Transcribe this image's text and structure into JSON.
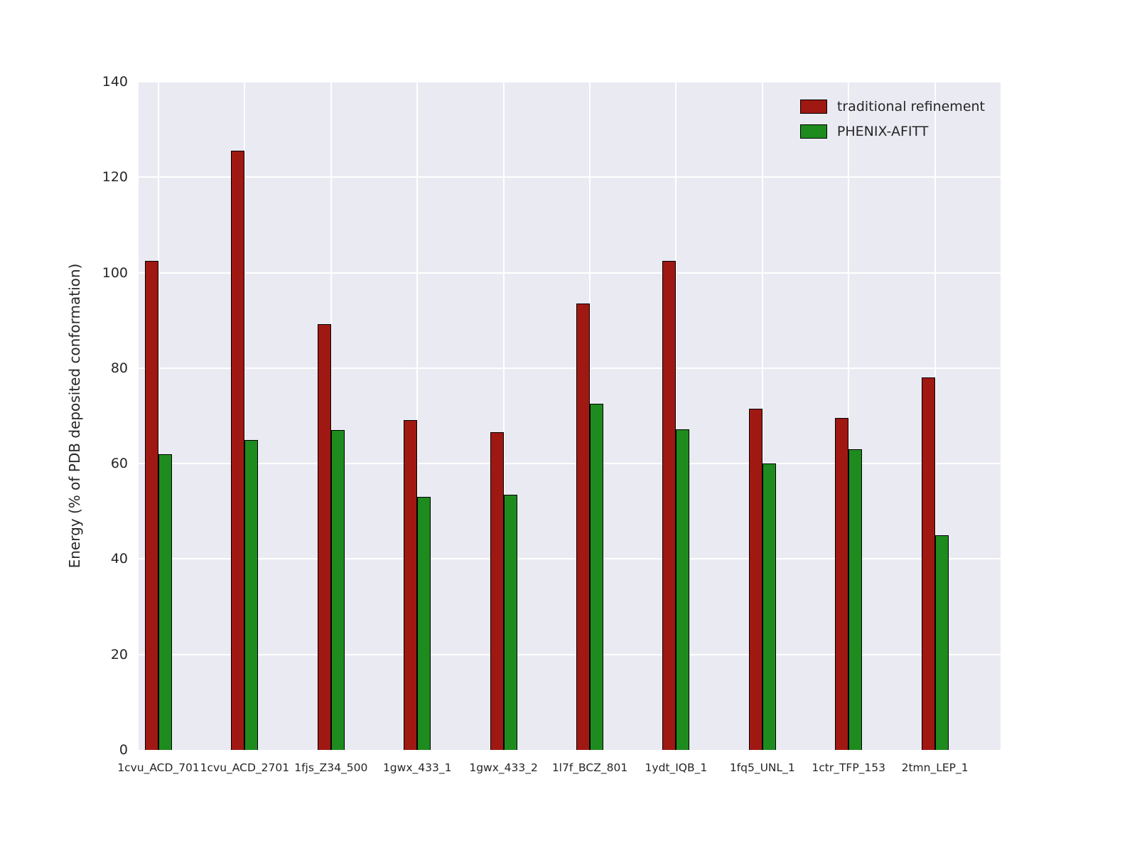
{
  "chart_data": {
    "type": "bar",
    "categories": [
      "1cvu_ACD_701",
      "1cvu_ACD_2701",
      "1fjs_Z34_500",
      "1gwx_433_1",
      "1gwx_433_2",
      "1l7f_BCZ_801",
      "1ydt_IQB_1",
      "1fq5_UNL_1",
      "1ctr_TFP_153",
      "2tmn_LEP_1"
    ],
    "series": [
      {
        "name": "traditional refinement",
        "color": "#a01812",
        "values": [
          102.5,
          125.5,
          89.2,
          69.1,
          66.6,
          93.5,
          102.5,
          71.5,
          69.5,
          78.0
        ]
      },
      {
        "name": "PHENIX-AFITT",
        "color": "#1e8b1e",
        "values": [
          62.0,
          65.0,
          67.0,
          53.0,
          53.5,
          72.5,
          67.2,
          60.0,
          63.0,
          45.0
        ]
      }
    ],
    "title": "",
    "xlabel": "",
    "ylabel": "Energy (% of PDB deposited conformation)",
    "ylim": [
      0,
      140
    ],
    "yticks": [
      0,
      20,
      40,
      60,
      80,
      100,
      120,
      140
    ],
    "grid": true,
    "plot_background": "#eaeaf2",
    "gridline_color": "#ffffff",
    "legend_position": "upper right"
  }
}
